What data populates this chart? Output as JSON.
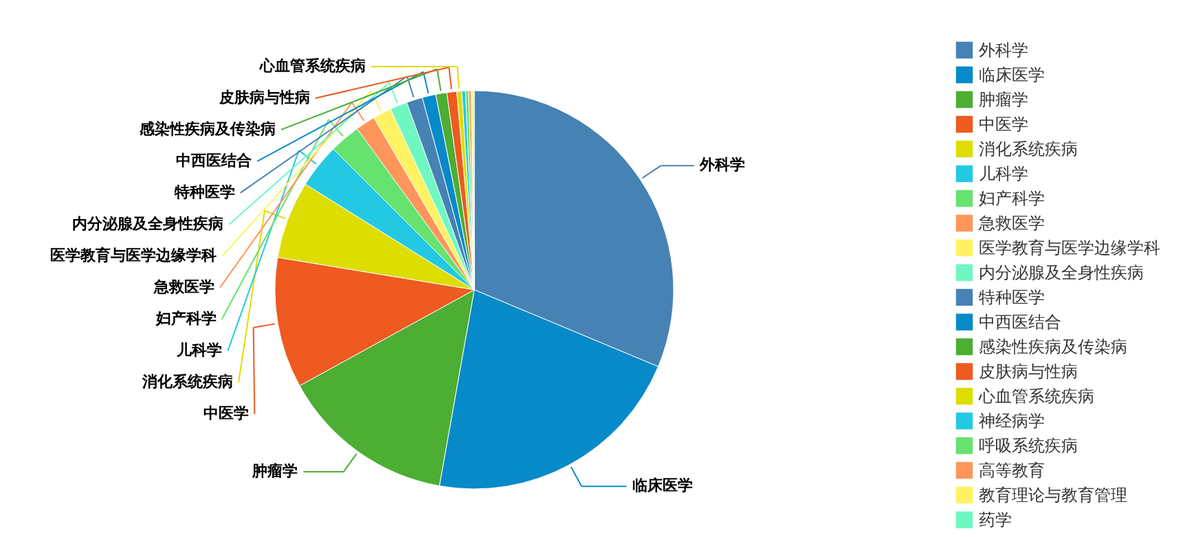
{
  "chart_data": {
    "type": "pie",
    "legend": "right",
    "categories": [
      "外科学",
      "临床医学",
      "肿瘤学",
      "中医学",
      "消化系统疾病",
      "儿科学",
      "妇产科学",
      "急救医学",
      "医学教育与医学边缘学科",
      "内分泌腺及全身性疾病",
      "特种医学",
      "中西医结合",
      "感染性疾病及传染病",
      "皮肤病与性病",
      "心血管系统疾病",
      "神经病学",
      "呼吸系统疾病",
      "高等教育",
      "教育理论与教育管理",
      "药学"
    ],
    "values": [
      31.3,
      21.5,
      14.2,
      10.6,
      6.3,
      3.6,
      2.5,
      1.6,
      1.5,
      1.4,
      1.3,
      1.1,
      0.9,
      0.8,
      0.4,
      0.3,
      0.25,
      0.2,
      0.15,
      0.1
    ],
    "colors": [
      "#4682b4",
      "#078ac9",
      "#4cae32",
      "#ee5a1f",
      "#dddd00",
      "#23c9e2",
      "#66e26f",
      "#ff955a",
      "#fff263",
      "#6ff7c2",
      "#4682b4",
      "#078ac9",
      "#4cae32",
      "#ee5a1f",
      "#dddd00",
      "#23c9e2",
      "#66e26f",
      "#ff955a",
      "#fff263",
      "#6ff7c2"
    ]
  }
}
